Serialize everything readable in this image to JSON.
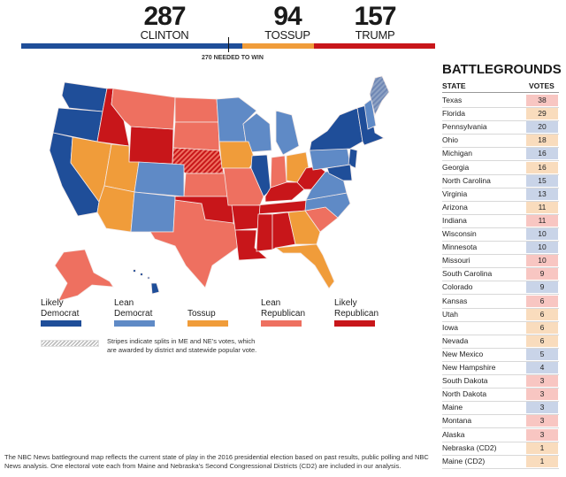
{
  "header": {
    "clinton": {
      "count": "287",
      "label": "CLINTON"
    },
    "tossup": {
      "count": "94",
      "label": "TOSSUP"
    },
    "trump": {
      "count": "157",
      "label": "TRUMP"
    },
    "needed_label": "270 NEEDED TO WIN"
  },
  "colors": {
    "likely_dem": "#1f4e99",
    "lean_dem": "#5f8ac6",
    "tossup": "#f09c3a",
    "lean_rep": "#ee7060",
    "likely_rep": "#c8161a",
    "cell_rep": "#f8c6c2",
    "cell_tossup": "#f9dcbd",
    "cell_dem": "#c9d4e8"
  },
  "battlegrounds": {
    "title": "BATTLEGROUNDS",
    "col_state": "STATE",
    "col_votes": "VOTES",
    "rows": [
      {
        "state": "Texas",
        "votes": "38",
        "rating": "lean_rep"
      },
      {
        "state": "Florida",
        "votes": "29",
        "rating": "tossup"
      },
      {
        "state": "Pennsylvania",
        "votes": "20",
        "rating": "lean_dem"
      },
      {
        "state": "Ohio",
        "votes": "18",
        "rating": "tossup"
      },
      {
        "state": "Michigan",
        "votes": "16",
        "rating": "lean_dem"
      },
      {
        "state": "Georgia",
        "votes": "16",
        "rating": "tossup"
      },
      {
        "state": "North Carolina",
        "votes": "15",
        "rating": "lean_dem"
      },
      {
        "state": "Virginia",
        "votes": "13",
        "rating": "lean_dem"
      },
      {
        "state": "Arizona",
        "votes": "11",
        "rating": "tossup"
      },
      {
        "state": "Indiana",
        "votes": "11",
        "rating": "lean_rep"
      },
      {
        "state": "Wisconsin",
        "votes": "10",
        "rating": "lean_dem"
      },
      {
        "state": "Minnesota",
        "votes": "10",
        "rating": "lean_dem"
      },
      {
        "state": "Missouri",
        "votes": "10",
        "rating": "lean_rep"
      },
      {
        "state": "South Carolina",
        "votes": "9",
        "rating": "lean_rep"
      },
      {
        "state": "Colorado",
        "votes": "9",
        "rating": "lean_dem"
      },
      {
        "state": "Kansas",
        "votes": "6",
        "rating": "lean_rep"
      },
      {
        "state": "Utah",
        "votes": "6",
        "rating": "tossup"
      },
      {
        "state": "Iowa",
        "votes": "6",
        "rating": "tossup"
      },
      {
        "state": "Nevada",
        "votes": "6",
        "rating": "tossup"
      },
      {
        "state": "New Mexico",
        "votes": "5",
        "rating": "lean_dem"
      },
      {
        "state": "New Hampshire",
        "votes": "4",
        "rating": "lean_dem"
      },
      {
        "state": "South Dakota",
        "votes": "3",
        "rating": "lean_rep"
      },
      {
        "state": "North Dakota",
        "votes": "3",
        "rating": "lean_rep"
      },
      {
        "state": "Maine",
        "votes": "3",
        "rating": "lean_dem"
      },
      {
        "state": "Montana",
        "votes": "3",
        "rating": "lean_rep"
      },
      {
        "state": "Alaska",
        "votes": "3",
        "rating": "lean_rep"
      },
      {
        "state": "Nebraska (CD2)",
        "votes": "1",
        "rating": "tossup"
      },
      {
        "state": "Maine (CD2)",
        "votes": "1",
        "rating": "tossup"
      }
    ]
  },
  "legend": {
    "items": [
      {
        "line1": "Likely",
        "line2": "Democrat",
        "key": "likely_dem"
      },
      {
        "line1": "Lean",
        "line2": "Democrat",
        "key": "lean_dem"
      },
      {
        "line1": "",
        "line2": "Tossup",
        "key": "tossup"
      },
      {
        "line1": "Lean",
        "line2": "Republican",
        "key": "lean_rep"
      },
      {
        "line1": "Likely",
        "line2": "Republican",
        "key": "likely_rep"
      }
    ],
    "stripes_note_line1": "Stripes indicate splits in ME and NE's votes, which",
    "stripes_note_line2": "are awarded by district and statewide popular vote."
  },
  "footnote": {
    "line1": "The NBC News battleground map reflects the current state of play in the 2016 presidential election based on past results, public polling and NBC",
    "line2": "News analysis. One electoral vote each from Maine and Nebraska's Second Congressional Districts (CD2) are included in our analysis."
  }
}
